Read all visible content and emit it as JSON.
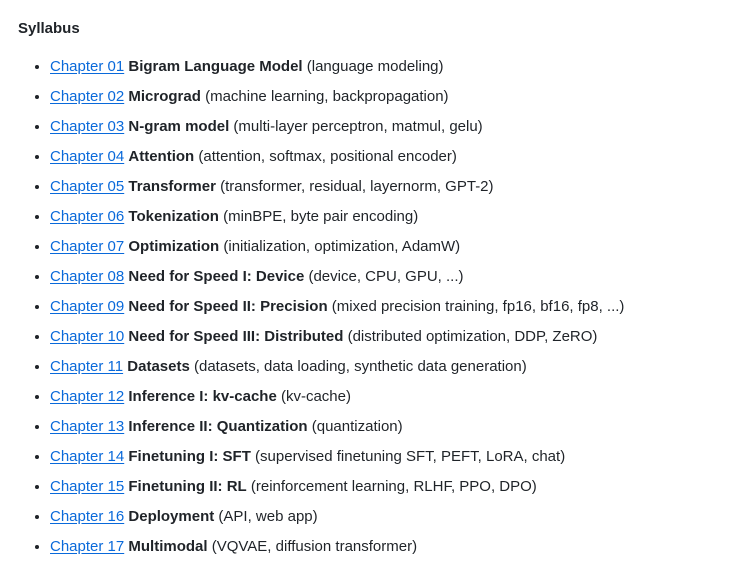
{
  "heading": "Syllabus",
  "chapters": [
    {
      "link": "Chapter 01",
      "title": "Bigram Language Model",
      "topics": "(language modeling)"
    },
    {
      "link": "Chapter 02",
      "title": "Micrograd",
      "topics": "(machine learning, backpropagation)"
    },
    {
      "link": "Chapter 03",
      "title": "N-gram model",
      "topics": "(multi-layer perceptron, matmul, gelu)"
    },
    {
      "link": "Chapter 04",
      "title": "Attention",
      "topics": "(attention, softmax, positional encoder)"
    },
    {
      "link": "Chapter 05",
      "title": "Transformer",
      "topics": "(transformer, residual, layernorm, GPT-2)"
    },
    {
      "link": "Chapter 06",
      "title": "Tokenization",
      "topics": "(minBPE, byte pair encoding)"
    },
    {
      "link": "Chapter 07",
      "title": "Optimization",
      "topics": "(initialization, optimization, AdamW)"
    },
    {
      "link": "Chapter 08",
      "title": "Need for Speed I: Device",
      "topics": "(device, CPU, GPU, ...)"
    },
    {
      "link": "Chapter 09",
      "title": "Need for Speed II: Precision",
      "topics": "(mixed precision training, fp16, bf16, fp8, ...)"
    },
    {
      "link": "Chapter 10",
      "title": "Need for Speed III: Distributed",
      "topics": "(distributed optimization, DDP, ZeRO)"
    },
    {
      "link": "Chapter 11",
      "title": "Datasets",
      "topics": "(datasets, data loading, synthetic data generation)"
    },
    {
      "link": "Chapter 12",
      "title": "Inference I: kv-cache",
      "topics": "(kv-cache)"
    },
    {
      "link": "Chapter 13",
      "title": "Inference II: Quantization",
      "topics": "(quantization)"
    },
    {
      "link": "Chapter 14",
      "title": "Finetuning I: SFT",
      "topics": "(supervised finetuning SFT, PEFT, LoRA, chat)"
    },
    {
      "link": "Chapter 15",
      "title": "Finetuning II: RL",
      "topics": "(reinforcement learning, RLHF, PPO, DPO)"
    },
    {
      "link": "Chapter 16",
      "title": "Deployment",
      "topics": "(API, web app)"
    },
    {
      "link": "Chapter 17",
      "title": "Multimodal",
      "topics": "(VQVAE, diffusion transformer)"
    }
  ]
}
